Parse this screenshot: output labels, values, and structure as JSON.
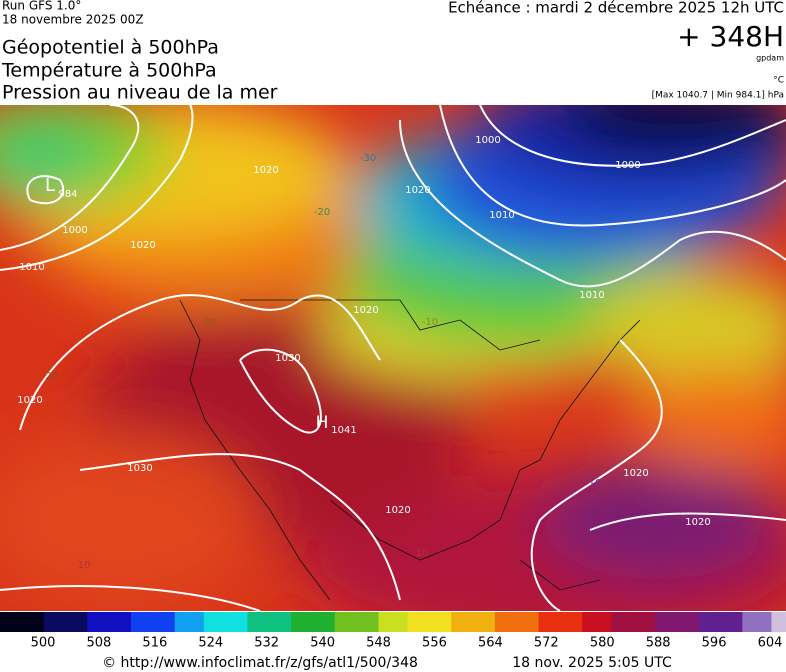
{
  "header": {
    "run": "Run GFS 1.0°",
    "run_date": "18 novembre 2025 00Z",
    "valid": "Echéance : mardi 2 décembre 2025 12h UTC",
    "lead": "+ 348H",
    "unit_geo": "gpdam",
    "unit_temp": "°C",
    "pressure_range": "[Max 1040.7 | Min 984.1] hPa"
  },
  "titles": [
    "Géopotentiel à 500hPa",
    "Température à 500hPa",
    "Pression au niveau de la mer"
  ],
  "map": {
    "labels": [
      "L",
      "984",
      "H",
      "1041",
      "1000",
      "1010",
      "1020",
      "1020",
      "1000",
      "1010",
      "1020",
      "1030",
      "1020",
      "1020",
      "1000",
      "1010",
      "1020",
      "1030",
      "1020",
      "1020",
      "-30",
      "-20",
      "-20",
      "-20",
      "-10",
      "10",
      "10",
      "10"
    ]
  },
  "colorbar": {
    "ticks": [
      500,
      508,
      516,
      524,
      532,
      540,
      548,
      556,
      564,
      572,
      580,
      588,
      596,
      604
    ]
  },
  "footer": {
    "url": "© http://www.infoclimat.fr/z/gfs/atl1/500/348",
    "generated": "18 nov. 2025  5:05 UTC"
  }
}
